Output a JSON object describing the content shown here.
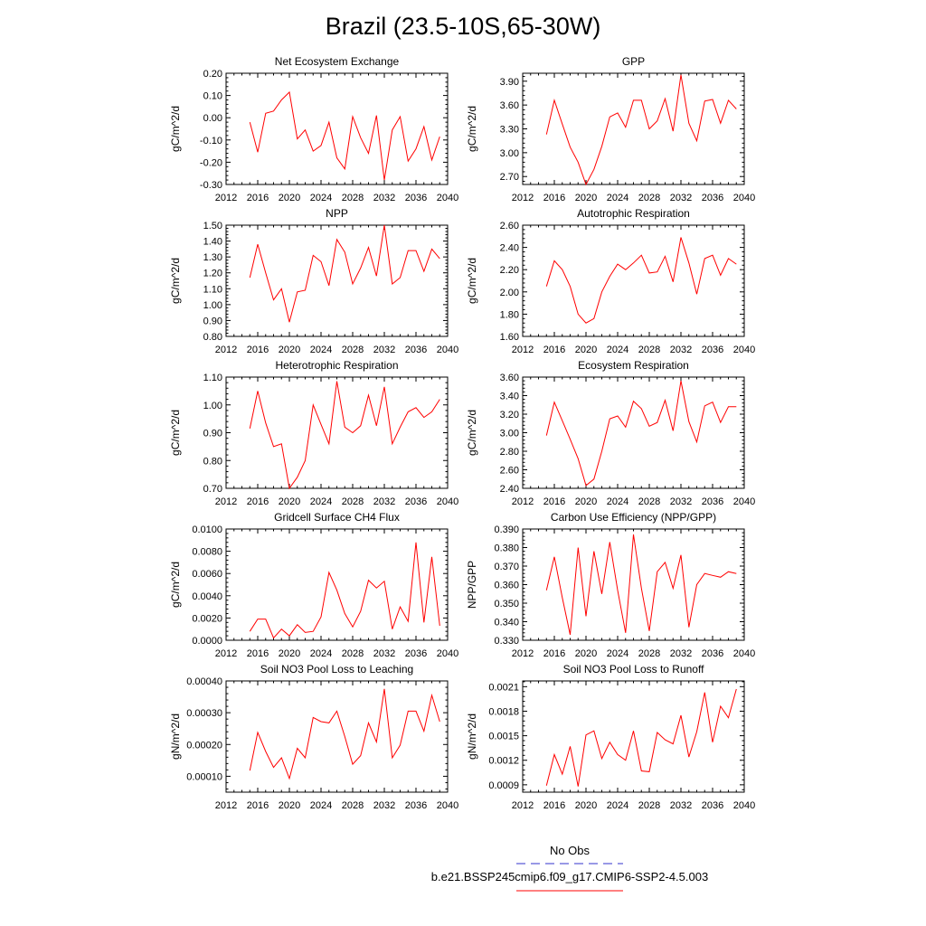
{
  "page": {
    "title": "Brazil (23.5-10S,65-30W)"
  },
  "legend": {
    "entries": [
      {
        "label": "No Obs",
        "color": "#3333cc",
        "dashed": true
      },
      {
        "label": "b.e21.BSSP245cmip6.f09_g17.CMIP6-SSP2-4.5.003",
        "color": "#ff0000",
        "dashed": false
      }
    ]
  },
  "colors": {
    "series": "#ff0000",
    "axis": "#000000"
  },
  "chart_data": [
    {
      "type": "line",
      "title": "Net Ecosystem Exchange",
      "ylabel": "gC/m^2/d",
      "xlim": [
        2012,
        2040
      ],
      "ylim": [
        -0.3,
        0.2
      ],
      "xticks": [
        2012,
        2016,
        2020,
        2024,
        2028,
        2032,
        2036,
        2040
      ],
      "xtick_labels": [
        "2012",
        "2016",
        "2020",
        "2024",
        "2028",
        "2032",
        "2036",
        "2040"
      ],
      "yticks": [
        -0.3,
        -0.2,
        -0.1,
        0.0,
        0.1,
        0.2
      ],
      "ytick_labels": [
        "-0.30",
        "-0.20",
        "-0.10",
        "0.00",
        "0.10",
        "0.20"
      ],
      "x": [
        2015,
        2016,
        2017,
        2018,
        2019,
        2020,
        2021,
        2022,
        2023,
        2024,
        2025,
        2026,
        2027,
        2028,
        2029,
        2030,
        2031,
        2032,
        2033,
        2034,
        2035,
        2036,
        2037,
        2038,
        2039
      ],
      "values": [
        -0.02,
        -0.155,
        0.02,
        0.03,
        0.08,
        0.115,
        -0.095,
        -0.055,
        -0.15,
        -0.125,
        -0.02,
        -0.18,
        -0.23,
        0.005,
        -0.09,
        -0.16,
        0.01,
        -0.28,
        -0.055,
        0.005,
        -0.195,
        -0.14,
        -0.04,
        -0.19,
        -0.085
      ]
    },
    {
      "type": "line",
      "title": "GPP",
      "ylabel": "gC/m^2/d",
      "xlim": [
        2012,
        2040
      ],
      "ylim": [
        2.6,
        4.0
      ],
      "xticks": [
        2012,
        2016,
        2020,
        2024,
        2028,
        2032,
        2036,
        2040
      ],
      "xtick_labels": [
        "2012",
        "2016",
        "2020",
        "2024",
        "2028",
        "2032",
        "2036",
        "2040"
      ],
      "yticks": [
        2.7,
        3.0,
        3.3,
        3.6,
        3.9
      ],
      "ytick_labels": [
        "2.70",
        "3.00",
        "3.30",
        "3.60",
        "3.90"
      ],
      "x": [
        2015,
        2016,
        2017,
        2018,
        2019,
        2020,
        2021,
        2022,
        2023,
        2024,
        2025,
        2026,
        2027,
        2028,
        2029,
        2030,
        2031,
        2032,
        2033,
        2034,
        2035,
        2036,
        2037,
        2038,
        2039
      ],
      "values": [
        3.23,
        3.66,
        3.36,
        3.07,
        2.88,
        2.6,
        2.79,
        3.08,
        3.45,
        3.5,
        3.32,
        3.66,
        3.66,
        3.3,
        3.4,
        3.68,
        3.27,
        3.98,
        3.37,
        3.15,
        3.65,
        3.67,
        3.37,
        3.66,
        3.55
      ]
    },
    {
      "type": "line",
      "title": "NPP",
      "ylabel": "gC/m^2/d",
      "xlim": [
        2012,
        2040
      ],
      "ylim": [
        0.8,
        1.5
      ],
      "xticks": [
        2012,
        2016,
        2020,
        2024,
        2028,
        2032,
        2036,
        2040
      ],
      "xtick_labels": [
        "2012",
        "2016",
        "2020",
        "2024",
        "2028",
        "2032",
        "2036",
        "2040"
      ],
      "yticks": [
        0.8,
        0.9,
        1.0,
        1.1,
        1.2,
        1.3,
        1.4,
        1.5
      ],
      "ytick_labels": [
        "0.80",
        "0.90",
        "1.00",
        "1.10",
        "1.20",
        "1.30",
        "1.40",
        "1.50"
      ],
      "x": [
        2015,
        2016,
        2017,
        2018,
        2019,
        2020,
        2021,
        2022,
        2023,
        2024,
        2025,
        2026,
        2027,
        2028,
        2029,
        2030,
        2031,
        2032,
        2033,
        2034,
        2035,
        2036,
        2037,
        2038,
        2039
      ],
      "values": [
        1.17,
        1.38,
        1.2,
        1.03,
        1.1,
        0.89,
        1.08,
        1.09,
        1.31,
        1.27,
        1.12,
        1.41,
        1.33,
        1.13,
        1.23,
        1.36,
        1.18,
        1.5,
        1.13,
        1.17,
        1.34,
        1.34,
        1.21,
        1.35,
        1.29
      ]
    },
    {
      "type": "line",
      "title": "Autotrophic Respiration",
      "ylabel": "gC/m^2/d",
      "xlim": [
        2012,
        2040
      ],
      "ylim": [
        1.6,
        2.6
      ],
      "xticks": [
        2012,
        2016,
        2020,
        2024,
        2028,
        2032,
        2036,
        2040
      ],
      "xtick_labels": [
        "2012",
        "2016",
        "2020",
        "2024",
        "2028",
        "2032",
        "2036",
        "2040"
      ],
      "yticks": [
        1.6,
        1.8,
        2.0,
        2.2,
        2.4,
        2.6
      ],
      "ytick_labels": [
        "1.60",
        "1.80",
        "2.00",
        "2.20",
        "2.40",
        "2.60"
      ],
      "x": [
        2015,
        2016,
        2017,
        2018,
        2019,
        2020,
        2021,
        2022,
        2023,
        2024,
        2025,
        2026,
        2027,
        2028,
        2029,
        2030,
        2031,
        2032,
        2033,
        2034,
        2035,
        2036,
        2037,
        2038,
        2039
      ],
      "values": [
        2.05,
        2.28,
        2.2,
        2.05,
        1.8,
        1.72,
        1.76,
        2.0,
        2.14,
        2.25,
        2.2,
        2.26,
        2.33,
        2.17,
        2.18,
        2.32,
        2.09,
        2.49,
        2.26,
        1.98,
        2.3,
        2.33,
        2.15,
        2.3,
        2.25
      ]
    },
    {
      "type": "line",
      "title": "Heterotrophic Respiration",
      "ylabel": "gC/m^2/d",
      "xlim": [
        2012,
        2040
      ],
      "ylim": [
        0.7,
        1.1
      ],
      "xticks": [
        2012,
        2016,
        2020,
        2024,
        2028,
        2032,
        2036,
        2040
      ],
      "xtick_labels": [
        "2012",
        "2016",
        "2020",
        "2024",
        "2028",
        "2032",
        "2036",
        "2040"
      ],
      "yticks": [
        0.7,
        0.8,
        0.9,
        1.0,
        1.1
      ],
      "ytick_labels": [
        "0.70",
        "0.80",
        "0.90",
        "1.00",
        "1.10"
      ],
      "x": [
        2015,
        2016,
        2017,
        2018,
        2019,
        2020,
        2021,
        2022,
        2023,
        2024,
        2025,
        2026,
        2027,
        2028,
        2029,
        2030,
        2031,
        2032,
        2033,
        2034,
        2035,
        2036,
        2037,
        2038,
        2039
      ],
      "values": [
        0.915,
        1.05,
        0.935,
        0.85,
        0.86,
        0.7,
        0.74,
        0.8,
        1.0,
        0.93,
        0.86,
        1.085,
        0.92,
        0.9,
        0.925,
        1.035,
        0.925,
        1.065,
        0.86,
        0.92,
        0.975,
        0.99,
        0.955,
        0.975,
        1.02
      ]
    },
    {
      "type": "line",
      "title": "Ecosystem Respiration",
      "ylabel": "gC/m^2/d",
      "xlim": [
        2012,
        2040
      ],
      "ylim": [
        2.4,
        3.6
      ],
      "xticks": [
        2012,
        2016,
        2020,
        2024,
        2028,
        2032,
        2036,
        2040
      ],
      "xtick_labels": [
        "2012",
        "2016",
        "2020",
        "2024",
        "2028",
        "2032",
        "2036",
        "2040"
      ],
      "yticks": [
        2.4,
        2.6,
        2.8,
        3.0,
        3.2,
        3.4,
        3.6
      ],
      "ytick_labels": [
        "2.40",
        "2.60",
        "2.80",
        "3.00",
        "3.20",
        "3.40",
        "3.60"
      ],
      "x": [
        2015,
        2016,
        2017,
        2018,
        2019,
        2020,
        2021,
        2022,
        2023,
        2024,
        2025,
        2026,
        2027,
        2028,
        2029,
        2030,
        2031,
        2032,
        2033,
        2034,
        2035,
        2036,
        2037,
        2038,
        2039
      ],
      "values": [
        2.97,
        3.33,
        3.13,
        2.93,
        2.72,
        2.43,
        2.5,
        2.8,
        3.15,
        3.18,
        3.06,
        3.34,
        3.26,
        3.07,
        3.11,
        3.35,
        3.02,
        3.56,
        3.12,
        2.9,
        3.29,
        3.33,
        3.11,
        3.28,
        3.28
      ]
    },
    {
      "type": "line",
      "title": "Gridcell Surface CH4 Flux",
      "ylabel": "gC/m^2/d",
      "xlim": [
        2012,
        2040
      ],
      "ylim": [
        0.0,
        0.01
      ],
      "xticks": [
        2012,
        2016,
        2020,
        2024,
        2028,
        2032,
        2036,
        2040
      ],
      "xtick_labels": [
        "2012",
        "2016",
        "2020",
        "2024",
        "2028",
        "2032",
        "2036",
        "2040"
      ],
      "yticks": [
        0.0,
        0.002,
        0.004,
        0.006,
        0.008,
        0.01
      ],
      "ytick_labels": [
        "0.0000",
        "0.0020",
        "0.0040",
        "0.0060",
        "0.0080",
        "0.0100"
      ],
      "x": [
        2015,
        2016,
        2017,
        2018,
        2019,
        2020,
        2021,
        2022,
        2023,
        2024,
        2025,
        2026,
        2027,
        2028,
        2029,
        2030,
        2031,
        2032,
        2033,
        2034,
        2035,
        2036,
        2037,
        2038,
        2039
      ],
      "values": [
        0.0008,
        0.0019,
        0.0019,
        0.0002,
        0.001,
        0.0004,
        0.0014,
        0.0007,
        0.0008,
        0.0021,
        0.0061,
        0.0045,
        0.0024,
        0.0012,
        0.0026,
        0.0054,
        0.0047,
        0.0053,
        0.001,
        0.003,
        0.0017,
        0.0088,
        0.0016,
        0.0075,
        0.0013
      ]
    },
    {
      "type": "line",
      "title": "Carbon Use Efficiency (NPP/GPP)",
      "ylabel": "NPP/GPP",
      "xlim": [
        2012,
        2040
      ],
      "ylim": [
        0.33,
        0.39
      ],
      "xticks": [
        2012,
        2016,
        2020,
        2024,
        2028,
        2032,
        2036,
        2040
      ],
      "xtick_labels": [
        "2012",
        "2016",
        "2020",
        "2024",
        "2028",
        "2032",
        "2036",
        "2040"
      ],
      "yticks": [
        0.33,
        0.34,
        0.35,
        0.36,
        0.37,
        0.38,
        0.39
      ],
      "ytick_labels": [
        "0.330",
        "0.340",
        "0.350",
        "0.360",
        "0.370",
        "0.380",
        "0.390"
      ],
      "x": [
        2015,
        2016,
        2017,
        2018,
        2019,
        2020,
        2021,
        2022,
        2023,
        2024,
        2025,
        2026,
        2027,
        2028,
        2029,
        2030,
        2031,
        2032,
        2033,
        2034,
        2035,
        2036,
        2037,
        2038,
        2039
      ],
      "values": [
        0.357,
        0.375,
        0.353,
        0.333,
        0.38,
        0.343,
        0.378,
        0.355,
        0.383,
        0.357,
        0.334,
        0.387,
        0.358,
        0.335,
        0.367,
        0.372,
        0.358,
        0.376,
        0.337,
        0.36,
        0.366,
        0.365,
        0.364,
        0.367,
        0.366
      ]
    },
    {
      "type": "line",
      "title": "Soil NO3 Pool Loss to Leaching",
      "ylabel": "gN/m^2/d",
      "xlim": [
        2012,
        2040
      ],
      "ylim": [
        5e-05,
        0.0004
      ],
      "xticks": [
        2012,
        2016,
        2020,
        2024,
        2028,
        2032,
        2036,
        2040
      ],
      "xtick_labels": [
        "2012",
        "2016",
        "2020",
        "2024",
        "2028",
        "2032",
        "2036",
        "2040"
      ],
      "yticks": [
        0.0001,
        0.0002,
        0.0003,
        0.0004
      ],
      "ytick_labels": [
        "0.00010",
        "0.00020",
        "0.00030",
        "0.00040"
      ],
      "x": [
        2015,
        2016,
        2017,
        2018,
        2019,
        2020,
        2021,
        2022,
        2023,
        2024,
        2025,
        2026,
        2027,
        2028,
        2029,
        2030,
        2031,
        2032,
        2033,
        2034,
        2035,
        2036,
        2037,
        2038,
        2039
      ],
      "values": [
        0.000118,
        0.000238,
        0.000178,
        0.000128,
        0.000158,
        9.3e-05,
        0.000188,
        0.000158,
        0.000285,
        0.000272,
        0.000268,
        0.000305,
        0.000225,
        0.000138,
        0.000165,
        0.000268,
        0.000208,
        0.000375,
        0.000158,
        0.000198,
        0.000305,
        0.000305,
        0.000242,
        0.000355,
        0.000272
      ]
    },
    {
      "type": "line",
      "title": "Soil NO3 Pool Loss to Runoff",
      "ylabel": "gN/m^2/d",
      "xlim": [
        2012,
        2040
      ],
      "ylim": [
        0.00081,
        0.00217
      ],
      "xticks": [
        2012,
        2016,
        2020,
        2024,
        2028,
        2032,
        2036,
        2040
      ],
      "xtick_labels": [
        "2012",
        "2016",
        "2020",
        "2024",
        "2028",
        "2032",
        "2036",
        "2040"
      ],
      "yticks": [
        0.0009,
        0.0012,
        0.0015,
        0.0018,
        0.0021
      ],
      "ytick_labels": [
        "0.0009",
        "0.0012",
        "0.0015",
        "0.0018",
        "0.0021"
      ],
      "x": [
        2015,
        2016,
        2017,
        2018,
        2019,
        2020,
        2021,
        2022,
        2023,
        2024,
        2025,
        2026,
        2027,
        2028,
        2029,
        2030,
        2031,
        2032,
        2033,
        2034,
        2035,
        2036,
        2037,
        2038,
        2039
      ],
      "values": [
        0.00089,
        0.00127,
        0.00103,
        0.00137,
        0.00088,
        0.00151,
        0.00156,
        0.00122,
        0.00142,
        0.00127,
        0.0012,
        0.00156,
        0.00107,
        0.00106,
        0.00154,
        0.00145,
        0.0014,
        0.00175,
        0.00124,
        0.00155,
        0.00203,
        0.00142,
        0.00186,
        0.00172,
        0.00207
      ]
    }
  ]
}
